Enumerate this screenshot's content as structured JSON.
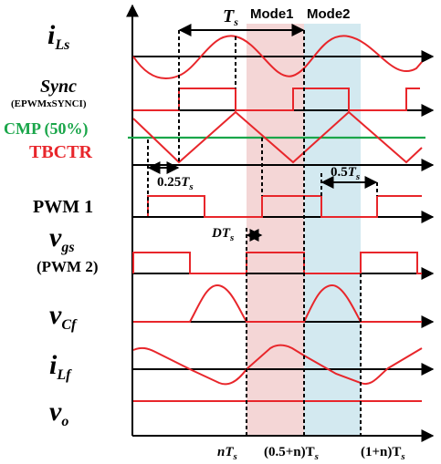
{
  "colors": {
    "waveform": "#e8262b",
    "cmp": "#1aa64a",
    "mode1_band": "#f4d6d6",
    "mode2_band": "#d3e9f0",
    "axis": "#000000"
  },
  "modes": {
    "mode1": "Mode1",
    "mode2": "Mode2"
  },
  "period_label": {
    "main": "T",
    "sub": "s"
  },
  "signals": {
    "iLs": {
      "main": "i",
      "sub": "Ls"
    },
    "sync": {
      "main": "Sync",
      "sub": "(EPWMxSYNCI)"
    },
    "cmp": "CMP (50%)",
    "tbctr": "TBCTR",
    "pwm1": "PWM 1",
    "vgs": {
      "main": "v",
      "sub": "gs",
      "extra": "(PWM 2)"
    },
    "vcf": {
      "main": "v",
      "sub": "Cf"
    },
    "iLf": {
      "main": "i",
      "sub": "Lf"
    },
    "vo": {
      "main": "v",
      "sub": "o"
    }
  },
  "annotations": {
    "quarter": {
      "coef": "0.25",
      "main": "T",
      "sub": "s"
    },
    "half": {
      "coef": "0.5",
      "main": "T",
      "sub": "s"
    },
    "dead": {
      "main": "DT",
      "sub": "s"
    }
  },
  "xaxis": {
    "t1": {
      "main": "nT",
      "sub": "s"
    },
    "t2": {
      "main": "(0.5+n)T",
      "sub": "s"
    },
    "t3": {
      "main": "(1+n)T",
      "sub": "s"
    }
  }
}
